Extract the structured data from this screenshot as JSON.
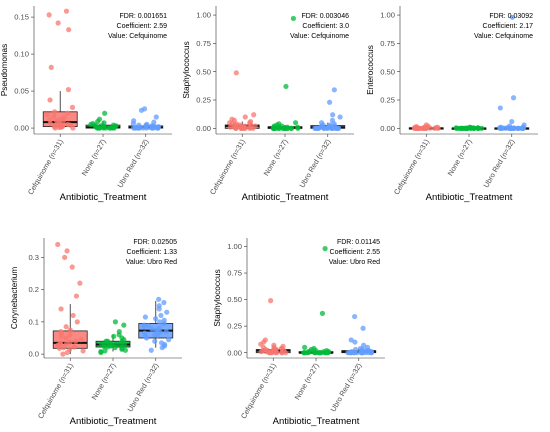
{
  "figure": {
    "colors": {
      "cefquinome": "#f8766d",
      "none": "#00ba38",
      "ubro_red": "#619cff"
    }
  },
  "chart_data": [
    {
      "type": "box",
      "ylabel": "Pseudomonas",
      "xlabel": "Antibiotic_Treatment",
      "categories": [
        "Cefquinome (n=31)",
        "None (n=27)",
        "Ubro Red (n=32)"
      ],
      "yticks": [
        0.0,
        0.05,
        0.1,
        0.15
      ],
      "ytick_labels": [
        "0.00",
        "0.05",
        "0.10",
        "0.15"
      ],
      "ylim": [
        -0.008,
        0.165
      ],
      "annotation": [
        "FDR: 0.001651",
        "Coefficient: 2.59",
        "Value: Cefquinome"
      ],
      "boxes": [
        {
          "q1": 0.002,
          "median": 0.008,
          "q3": 0.022,
          "whisker_low": 0.0,
          "whisker_high": 0.05
        },
        {
          "q1": 0.0,
          "median": 0.001,
          "q3": 0.004,
          "whisker_low": 0.0,
          "whisker_high": 0.009
        },
        {
          "q1": 0.0,
          "median": 0.001,
          "q3": 0.003,
          "whisker_low": 0.0,
          "whisker_high": 0.007
        }
      ],
      "points": [
        [
          0.158,
          0.153,
          0.142,
          0.133,
          0.082,
          0.052,
          0.038,
          0.028,
          0.022,
          0.02,
          0.018,
          0.016,
          0.014,
          0.012,
          0.011,
          0.01,
          0.009,
          0.008,
          0.007,
          0.006,
          0.005,
          0.004,
          0.004,
          0.003,
          0.003,
          0.002,
          0.002,
          0.001,
          0.001,
          0.0,
          0.0
        ],
        [
          0.02,
          0.012,
          0.009,
          0.007,
          0.006,
          0.005,
          0.004,
          0.004,
          0.003,
          0.003,
          0.002,
          0.002,
          0.002,
          0.001,
          0.001,
          0.001,
          0.001,
          0.0,
          0.0,
          0.0,
          0.0,
          0.0,
          0.0,
          0.0,
          0.0,
          0.0,
          0.0
        ],
        [
          0.026,
          0.024,
          0.015,
          0.01,
          0.008,
          0.006,
          0.005,
          0.004,
          0.004,
          0.003,
          0.003,
          0.002,
          0.002,
          0.002,
          0.001,
          0.001,
          0.001,
          0.001,
          0.0,
          0.0,
          0.0,
          0.0,
          0.0,
          0.0,
          0.0,
          0.0,
          0.0,
          0.0,
          0.0,
          0.0,
          0.0,
          0.0
        ]
      ]
    },
    {
      "type": "box",
      "ylabel": "Staphylococcus",
      "xlabel": "Antibiotic_Treatment",
      "categories": [
        "Cefquinome (n=31)",
        "None (n=27)",
        "Ubro Red (n=32)"
      ],
      "yticks": [
        0.0,
        0.25,
        0.5,
        0.75,
        1.0
      ],
      "ytick_labels": [
        "0.00",
        "0.25",
        "0.50",
        "0.75",
        "1.00"
      ],
      "ylim": [
        -0.05,
        1.08
      ],
      "annotation": [
        "FDR: 0.003046",
        "Coefficient: 3.0",
        "Value: Cefquinome"
      ],
      "boxes": [
        {
          "q1": 0.0,
          "median": 0.02,
          "q3": 0.03,
          "whisker_low": 0.0,
          "whisker_high": 0.06
        },
        {
          "q1": 0.0,
          "median": 0.005,
          "q3": 0.015,
          "whisker_low": 0.0,
          "whisker_high": 0.03
        },
        {
          "q1": 0.0,
          "median": 0.01,
          "q3": 0.025,
          "whisker_low": 0.0,
          "whisker_high": 0.05
        }
      ],
      "points": [
        [
          0.49,
          0.12,
          0.1,
          0.08,
          0.07,
          0.06,
          0.05,
          0.05,
          0.04,
          0.04,
          0.03,
          0.03,
          0.03,
          0.02,
          0.02,
          0.02,
          0.02,
          0.01,
          0.01,
          0.01,
          0.01,
          0.01,
          0.0,
          0.0,
          0.0,
          0.0,
          0.0,
          0.0,
          0.0,
          0.0,
          0.0
        ],
        [
          0.97,
          0.37,
          0.05,
          0.04,
          0.03,
          0.02,
          0.02,
          0.01,
          0.01,
          0.01,
          0.01,
          0.0,
          0.0,
          0.0,
          0.0,
          0.0,
          0.0,
          0.0,
          0.0,
          0.0,
          0.0,
          0.0,
          0.0,
          0.0,
          0.0,
          0.0,
          0.0
        ],
        [
          0.34,
          0.23,
          0.12,
          0.1,
          0.07,
          0.05,
          0.04,
          0.03,
          0.03,
          0.02,
          0.02,
          0.02,
          0.01,
          0.01,
          0.01,
          0.01,
          0.0,
          0.0,
          0.0,
          0.0,
          0.0,
          0.0,
          0.0,
          0.0,
          0.0,
          0.0,
          0.0,
          0.0,
          0.0,
          0.0,
          0.0,
          0.0
        ]
      ]
    },
    {
      "type": "box",
      "ylabel": "Enterococcus",
      "xlabel": "Antibiotic_Treatment",
      "categories": [
        "Cefquinome (n=31)",
        "None (n=27)",
        "Ubro Red (n=32)"
      ],
      "yticks": [
        0.0,
        0.25,
        0.5,
        0.75,
        1.0
      ],
      "ytick_labels": [
        "0.00",
        "0.25",
        "0.50",
        "0.75",
        "1.00"
      ],
      "ylim": [
        -0.05,
        1.08
      ],
      "annotation": [
        "FDR: 0.03092",
        "Coefficient: 2.17",
        "Value: Cefquinome"
      ],
      "boxes": [
        {
          "q1": 0.0,
          "median": 0.0,
          "q3": 0.005,
          "whisker_low": 0.0,
          "whisker_high": 0.01
        },
        {
          "q1": 0.0,
          "median": 0.0,
          "q3": 0.003,
          "whisker_low": 0.0,
          "whisker_high": 0.005
        },
        {
          "q1": 0.0,
          "median": 0.0,
          "q3": 0.004,
          "whisker_low": 0.0,
          "whisker_high": 0.008
        }
      ],
      "points": [
        [
          0.03,
          0.02,
          0.015,
          0.01,
          0.01,
          0.008,
          0.006,
          0.005,
          0.004,
          0.003,
          0.003,
          0.002,
          0.002,
          0.001,
          0.001,
          0.001,
          0.0,
          0.0,
          0.0,
          0.0,
          0.0,
          0.0,
          0.0,
          0.0,
          0.0,
          0.0,
          0.0,
          0.0,
          0.0,
          0.0,
          0.0
        ],
        [
          0.01,
          0.008,
          0.005,
          0.004,
          0.003,
          0.002,
          0.002,
          0.001,
          0.001,
          0.0,
          0.0,
          0.0,
          0.0,
          0.0,
          0.0,
          0.0,
          0.0,
          0.0,
          0.0,
          0.0,
          0.0,
          0.0,
          0.0,
          0.0,
          0.0,
          0.0,
          0.0
        ],
        [
          0.98,
          0.27,
          0.18,
          0.06,
          0.03,
          0.02,
          0.01,
          0.01,
          0.005,
          0.004,
          0.003,
          0.002,
          0.001,
          0.001,
          0.0,
          0.0,
          0.0,
          0.0,
          0.0,
          0.0,
          0.0,
          0.0,
          0.0,
          0.0,
          0.0,
          0.0,
          0.0,
          0.0,
          0.0,
          0.0,
          0.0,
          0.0
        ]
      ]
    },
    {
      "type": "box",
      "ylabel": "Corynebacterium",
      "xlabel": "Antibiotic_Treatment",
      "categories": [
        "Cefquinome (n=31)",
        "None (n=27)",
        "Ubro Red (n=32)"
      ],
      "yticks": [
        0.0,
        0.1,
        0.2,
        0.3
      ],
      "ytick_labels": [
        "0.0",
        "0.1",
        "0.2",
        "0.3"
      ],
      "ylim": [
        -0.012,
        0.36
      ],
      "annotation": [
        "FDR: 0.02505",
        "Coefficient: 1.33",
        "Value: Ubro Red"
      ],
      "boxes": [
        {
          "q1": 0.018,
          "median": 0.035,
          "q3": 0.072,
          "whisker_low": 0.0,
          "whisker_high": 0.155
        },
        {
          "q1": 0.022,
          "median": 0.03,
          "q3": 0.04,
          "whisker_low": 0.008,
          "whisker_high": 0.06
        },
        {
          "q1": 0.05,
          "median": 0.073,
          "q3": 0.095,
          "whisker_low": 0.02,
          "whisker_high": 0.165
        }
      ],
      "points": [
        [
          0.34,
          0.32,
          0.3,
          0.27,
          0.22,
          0.18,
          0.14,
          0.12,
          0.1,
          0.085,
          0.075,
          0.07,
          0.065,
          0.06,
          0.055,
          0.05,
          0.045,
          0.04,
          0.038,
          0.035,
          0.032,
          0.03,
          0.028,
          0.025,
          0.022,
          0.02,
          0.018,
          0.015,
          0.01,
          0.005,
          0.0
        ],
        [
          0.1,
          0.09,
          0.07,
          0.06,
          0.055,
          0.05,
          0.045,
          0.04,
          0.04,
          0.038,
          0.035,
          0.033,
          0.032,
          0.03,
          0.03,
          0.028,
          0.027,
          0.025,
          0.024,
          0.022,
          0.02,
          0.018,
          0.015,
          0.012,
          0.01,
          0.008,
          0.005
        ],
        [
          0.17,
          0.16,
          0.15,
          0.14,
          0.13,
          0.12,
          0.115,
          0.11,
          0.105,
          0.1,
          0.095,
          0.09,
          0.088,
          0.085,
          0.08,
          0.078,
          0.075,
          0.073,
          0.07,
          0.068,
          0.065,
          0.06,
          0.058,
          0.055,
          0.05,
          0.045,
          0.04,
          0.035,
          0.03,
          0.025,
          0.02,
          0.012
        ]
      ]
    },
    {
      "type": "box",
      "ylabel": "Staphylococcus",
      "xlabel": "Antibiotic_Treatment",
      "categories": [
        "Cefquinome (n=31)",
        "None (n=27)",
        "Ubro Red (n=32)"
      ],
      "yticks": [
        0.0,
        0.25,
        0.5,
        0.75,
        1.0
      ],
      "ytick_labels": [
        "0.00",
        "0.25",
        "0.50",
        "0.75",
        "1.00"
      ],
      "ylim": [
        -0.05,
        1.08
      ],
      "annotation": [
        "FDR: 0.01145",
        "Coefficient: 2.55",
        "Value: Ubro Red"
      ],
      "boxes": [
        {
          "q1": 0.0,
          "median": 0.02,
          "q3": 0.03,
          "whisker_low": 0.0,
          "whisker_high": 0.06
        },
        {
          "q1": 0.0,
          "median": 0.0,
          "q3": 0.01,
          "whisker_low": 0.0,
          "whisker_high": 0.02
        },
        {
          "q1": 0.0,
          "median": 0.01,
          "q3": 0.02,
          "whisker_low": 0.0,
          "whisker_high": 0.04
        }
      ],
      "points": [
        [
          0.49,
          0.12,
          0.1,
          0.08,
          0.07,
          0.06,
          0.05,
          0.05,
          0.04,
          0.04,
          0.03,
          0.03,
          0.03,
          0.02,
          0.02,
          0.02,
          0.02,
          0.01,
          0.01,
          0.01,
          0.01,
          0.01,
          0.0,
          0.0,
          0.0,
          0.0,
          0.0,
          0.0,
          0.0,
          0.0,
          0.0
        ],
        [
          0.98,
          0.37,
          0.05,
          0.04,
          0.03,
          0.02,
          0.02,
          0.01,
          0.01,
          0.01,
          0.01,
          0.0,
          0.0,
          0.0,
          0.0,
          0.0,
          0.0,
          0.0,
          0.0,
          0.0,
          0.0,
          0.0,
          0.0,
          0.0,
          0.0,
          0.0,
          0.0
        ],
        [
          0.34,
          0.23,
          0.12,
          0.1,
          0.07,
          0.05,
          0.04,
          0.03,
          0.03,
          0.02,
          0.02,
          0.02,
          0.01,
          0.01,
          0.01,
          0.01,
          0.0,
          0.0,
          0.0,
          0.0,
          0.0,
          0.0,
          0.0,
          0.0,
          0.0,
          0.0,
          0.0,
          0.0,
          0.0,
          0.0,
          0.0,
          0.0
        ]
      ]
    }
  ]
}
